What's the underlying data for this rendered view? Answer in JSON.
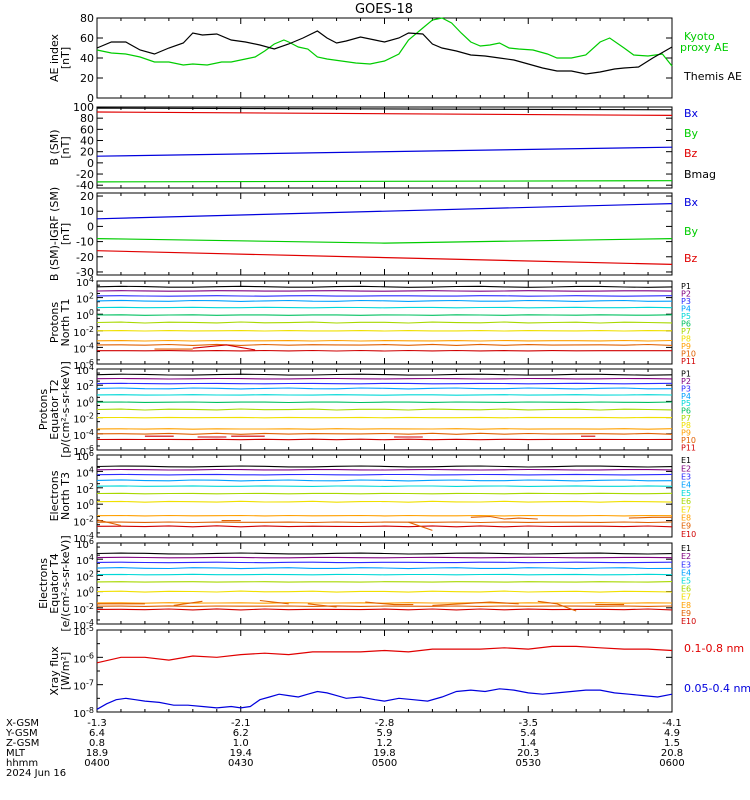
{
  "title": "GOES-18",
  "colors": {
    "black": "#000000",
    "red": "#e00000",
    "green": "#00cc00",
    "blue": "#0000dd",
    "p1": "#000000",
    "p2": "#800080",
    "p3": "#2b2bff",
    "p4": "#00a0ff",
    "p5": "#00d8d8",
    "p6": "#00c060",
    "p7": "#a8d800",
    "p8": "#f0e000",
    "p9": "#ffa000",
    "p10": "#e06000",
    "p11": "#d00000"
  },
  "chart_data": [
    {
      "id": "ae",
      "type": "line",
      "ylabel": "AE index\n[nT]",
      "ylim": [
        0,
        80
      ],
      "ticks": [
        0,
        20,
        40,
        60,
        80
      ],
      "scale": "linear",
      "series": [
        {
          "name": "Kyoto\nproxy AE",
          "color": "green",
          "x": [
            0,
            3,
            6,
            9,
            12,
            15,
            18,
            20,
            23,
            26,
            28,
            31,
            33,
            35,
            37,
            39,
            40,
            42,
            44,
            46,
            48,
            51,
            54,
            57,
            60,
            63,
            65,
            68,
            70,
            72,
            74,
            76,
            78,
            80,
            82,
            84,
            86,
            88,
            91,
            94,
            96,
            99,
            102,
            105,
            107,
            110,
            112,
            115,
            118,
            120
          ],
          "y": [
            48,
            45,
            44,
            41,
            36,
            36,
            33,
            34,
            33,
            36,
            36,
            39,
            41,
            47,
            54,
            58,
            56,
            51,
            49,
            41,
            39,
            37,
            35,
            34,
            37,
            44,
            58,
            70,
            78,
            80,
            75,
            65,
            56,
            52,
            53,
            55,
            50,
            49,
            48,
            44,
            40,
            40,
            43,
            56,
            60,
            50,
            43,
            42,
            44,
            32
          ]
        },
        {
          "name": "Themis AE",
          "color": "black",
          "x": [
            0,
            3,
            6,
            9,
            12,
            15,
            18,
            20,
            22,
            25,
            28,
            31,
            34,
            37,
            40,
            43,
            46,
            48,
            50,
            52,
            55,
            58,
            60,
            63,
            65,
            68,
            70,
            72,
            75,
            78,
            81,
            84,
            87,
            90,
            93,
            96,
            99,
            102,
            105,
            108,
            110,
            113,
            116,
            120
          ],
          "y": [
            50,
            56,
            56,
            48,
            44,
            50,
            55,
            65,
            63,
            64,
            58,
            56,
            53,
            49,
            54,
            60,
            67,
            60,
            55,
            57,
            61,
            58,
            56,
            60,
            65,
            64,
            54,
            50,
            47,
            43,
            42,
            40,
            38,
            34,
            30,
            27,
            27,
            24,
            26,
            29,
            30,
            31,
            40,
            51
          ]
        }
      ]
    },
    {
      "id": "bsm",
      "type": "line",
      "ylabel": "B (SM)\n[nT]",
      "ylim": [
        -45,
        100
      ],
      "ticks": [
        -40,
        -20,
        0,
        20,
        40,
        60,
        80,
        100
      ],
      "scale": "linear",
      "series": [
        {
          "name": "Bx",
          "color": "blue",
          "x": [
            0,
            120
          ],
          "y": [
            12,
            28
          ]
        },
        {
          "name": "By",
          "color": "green",
          "x": [
            0,
            120
          ],
          "y": [
            -34,
            -32
          ]
        },
        {
          "name": "Bz",
          "color": "red",
          "x": [
            0,
            120
          ],
          "y": [
            91,
            85
          ]
        },
        {
          "name": "Bmag",
          "color": "black",
          "x": [
            0,
            120
          ],
          "y": [
            98,
            95
          ]
        }
      ]
    },
    {
      "id": "bigrf",
      "type": "line",
      "ylabel": "B (SM)-IGRF (SM)\n[nT]",
      "ylim": [
        -32,
        22
      ],
      "ticks": [
        -30,
        -20,
        -10,
        0,
        10,
        20
      ],
      "scale": "linear",
      "series": [
        {
          "name": "Bx",
          "color": "blue",
          "x": [
            0,
            120
          ],
          "y": [
            5,
            15
          ]
        },
        {
          "name": "By",
          "color": "green",
          "x": [
            0,
            60,
            120
          ],
          "y": [
            -8,
            -11,
            -8
          ]
        },
        {
          "name": "Bz",
          "color": "red",
          "x": [
            0,
            120
          ],
          "y": [
            -16,
            -25
          ]
        }
      ]
    },
    {
      "id": "protons_t1",
      "type": "line",
      "ylabel": "Protons\nNorth T1",
      "ylim": [
        -6,
        4
      ],
      "scale": "log",
      "tick_labels": [
        {
          "base": "10",
          "exp": "4",
          "v": 4
        },
        {
          "base": "10",
          "exp": "2",
          "v": 2
        },
        {
          "base": "10",
          "exp": "0",
          "v": 0
        },
        {
          "base": "10",
          "exp": "-2",
          "v": -2
        },
        {
          "base": "10",
          "exp": "-4",
          "v": -4
        },
        {
          "base": "10",
          "exp": "-6",
          "v": -6
        }
      ],
      "channels": [
        "P1",
        "P2",
        "P3",
        "P4",
        "P5",
        "P6",
        "P7",
        "P8",
        "P9",
        "P10",
        "P11"
      ],
      "levels": [
        3.3,
        2.8,
        2.2,
        1.6,
        0.8,
        -0.1,
        -1.0,
        -2.0,
        -3.2,
        -3.7,
        -4.4
      ],
      "fragments": [
        {
          "channel": 9,
          "x": [
            12,
            20
          ],
          "y": [
            -4.2,
            -4.2
          ]
        },
        {
          "channel": 10,
          "x": [
            20,
            27,
            33
          ],
          "y": [
            -4.1,
            -3.7,
            -4.3
          ]
        }
      ]
    },
    {
      "id": "protons_t2",
      "type": "line",
      "ylabel": "Protons\nEquator T2\n[p/(cm²-s-sr-keV)]",
      "ylim": [
        -6,
        4
      ],
      "scale": "log",
      "tick_labels": [
        {
          "base": "10",
          "exp": "4",
          "v": 4
        },
        {
          "base": "10",
          "exp": "2",
          "v": 2
        },
        {
          "base": "10",
          "exp": "0",
          "v": 0
        },
        {
          "base": "10",
          "exp": "-2",
          "v": -2
        },
        {
          "base": "10",
          "exp": "-4",
          "v": -4
        },
        {
          "base": "10",
          "exp": "-6",
          "v": -6
        }
      ],
      "channels": [
        "P1",
        "P2",
        "P3",
        "P4",
        "P5",
        "P6",
        "P7",
        "P8",
        "P9",
        "P10",
        "P11"
      ],
      "levels": [
        3.3,
        2.8,
        2.2,
        1.6,
        0.8,
        -0.1,
        -1.0,
        -2.0,
        -3.4,
        -4.0,
        -4.7
      ],
      "fragments": [
        {
          "channel": 10,
          "x": [
            10,
            16
          ],
          "y": [
            -4.3,
            -4.3
          ]
        },
        {
          "channel": 10,
          "x": [
            21,
            27
          ],
          "y": [
            -4.4,
            -4.4
          ]
        },
        {
          "channel": 10,
          "x": [
            28,
            35
          ],
          "y": [
            -4.3,
            -4.3
          ]
        },
        {
          "channel": 10,
          "x": [
            62,
            68
          ],
          "y": [
            -4.4,
            -4.4
          ]
        },
        {
          "channel": 10,
          "x": [
            101,
            104
          ],
          "y": [
            -4.3,
            -4.3
          ]
        }
      ]
    },
    {
      "id": "electrons_t3",
      "type": "line",
      "ylabel": "Electrons\nNorth T3",
      "ylim": [
        -4,
        6
      ],
      "scale": "log",
      "tick_labels": [
        {
          "base": "10",
          "exp": "6",
          "v": 6
        },
        {
          "base": "10",
          "exp": "4",
          "v": 4
        },
        {
          "base": "10",
          "exp": "2",
          "v": 2
        },
        {
          "base": "10",
          "exp": "0",
          "v": 0
        },
        {
          "base": "10",
          "exp": "-2",
          "v": -2
        },
        {
          "base": "10",
          "exp": "-4",
          "v": -4
        }
      ],
      "channels": [
        "E1",
        "E2",
        "E3",
        "E4",
        "E5",
        "E6",
        "E7",
        "E8",
        "E9",
        "E10"
      ],
      "levels": [
        4.6,
        4.2,
        3.6,
        2.9,
        2.2,
        1.3,
        0.3,
        -1.4,
        -2.2,
        -2.7
      ],
      "fragments": [
        {
          "channel": 8,
          "x": [
            0,
            5
          ],
          "y": [
            -1.9,
            -2.6
          ]
        },
        {
          "channel": 8,
          "x": [
            26,
            30
          ],
          "y": [
            -2.0,
            -2.0
          ]
        },
        {
          "channel": 8,
          "x": [
            65,
            70
          ],
          "y": [
            -2.2,
            -3.2
          ]
        },
        {
          "channel": 8,
          "x": [
            78,
            82,
            85,
            88,
            92
          ],
          "y": [
            -1.6,
            -1.5,
            -1.8,
            -1.7,
            -1.8
          ]
        },
        {
          "channel": 8,
          "x": [
            111,
            116,
            120
          ],
          "y": [
            -1.7,
            -1.6,
            -1.6
          ]
        }
      ]
    },
    {
      "id": "electrons_t4",
      "type": "line",
      "ylabel": "Electrons\nEquator T4\n[e/(cm²-s-sr-keV)]",
      "ylim": [
        -4,
        6
      ],
      "scale": "log",
      "tick_labels": [
        {
          "base": "10",
          "exp": "6",
          "v": 6
        },
        {
          "base": "10",
          "exp": "4",
          "v": 4
        },
        {
          "base": "10",
          "exp": "2",
          "v": 2
        },
        {
          "base": "10",
          "exp": "0",
          "v": 0
        },
        {
          "base": "10",
          "exp": "-2",
          "v": -2
        },
        {
          "base": "10",
          "exp": "-4",
          "v": -4
        }
      ],
      "channels": [
        "E1",
        "E2",
        "E3",
        "E4",
        "E5",
        "E6",
        "E7",
        "E8",
        "E9",
        "E10"
      ],
      "levels": [
        4.7,
        4.2,
        3.6,
        2.9,
        2.1,
        1.2,
        0.0,
        -1.4,
        -1.8,
        -2.2
      ],
      "fragments": [
        {
          "channel": 8,
          "x": [
            0,
            10
          ],
          "y": [
            -1.5,
            -1.5
          ]
        },
        {
          "channel": 8,
          "x": [
            16,
            22
          ],
          "y": [
            -1.7,
            -1.2
          ]
        },
        {
          "channel": 8,
          "x": [
            34,
            40
          ],
          "y": [
            -1.1,
            -1.5
          ]
        },
        {
          "channel": 8,
          "x": [
            44,
            50
          ],
          "y": [
            -1.5,
            -1.9
          ]
        },
        {
          "channel": 8,
          "x": [
            56,
            62,
            66
          ],
          "y": [
            -1.3,
            -1.6,
            -1.6
          ]
        },
        {
          "channel": 8,
          "x": [
            70,
            76,
            82,
            88
          ],
          "y": [
            -1.7,
            -1.5,
            -1.3,
            -1.5
          ]
        },
        {
          "channel": 8,
          "x": [
            92,
            96,
            100
          ],
          "y": [
            -1.2,
            -1.5,
            -2.4
          ]
        },
        {
          "channel": 8,
          "x": [
            104,
            110
          ],
          "y": [
            -1.6,
            -1.6
          ]
        }
      ]
    },
    {
      "id": "xray",
      "type": "line",
      "ylabel": "Xray flux\n[W/m²]",
      "ylim": [
        -8,
        -5
      ],
      "scale": "log",
      "tick_labels": [
        {
          "base": "10",
          "exp": "-5",
          "v": -5
        },
        {
          "base": "10",
          "exp": "-6",
          "v": -6
        },
        {
          "base": "10",
          "exp": "-7",
          "v": -7
        },
        {
          "base": "10",
          "exp": "-8",
          "v": -8
        }
      ],
      "series": [
        {
          "name": "0.1-0.8 nm",
          "color": "red",
          "x": [
            0,
            5,
            10,
            15,
            20,
            25,
            30,
            35,
            40,
            45,
            50,
            55,
            60,
            65,
            70,
            75,
            80,
            85,
            90,
            95,
            100,
            105,
            110,
            115,
            120
          ],
          "y": [
            -6.2,
            -6.0,
            -6.0,
            -6.1,
            -5.95,
            -6.0,
            -5.9,
            -5.85,
            -5.9,
            -5.8,
            -5.8,
            -5.8,
            -5.75,
            -5.8,
            -5.7,
            -5.7,
            -5.7,
            -5.65,
            -5.7,
            -5.6,
            -5.6,
            -5.65,
            -5.7,
            -5.7,
            -5.75
          ]
        },
        {
          "name": "0.05-0.4 nm",
          "color": "blue",
          "x": [
            0,
            2,
            4,
            6,
            8,
            10,
            13,
            16,
            19,
            22,
            25,
            28,
            30,
            32,
            34,
            36,
            38,
            40,
            42,
            44,
            46,
            48,
            50,
            52,
            55,
            58,
            60,
            63,
            66,
            69,
            72,
            75,
            78,
            81,
            84,
            87,
            90,
            93,
            96,
            99,
            102,
            105,
            108,
            111,
            114,
            117,
            120
          ],
          "y": [
            -7.9,
            -7.7,
            -7.55,
            -7.5,
            -7.55,
            -7.6,
            -7.65,
            -7.75,
            -7.75,
            -7.8,
            -7.85,
            -7.8,
            -7.85,
            -7.8,
            -7.55,
            -7.45,
            -7.35,
            -7.4,
            -7.45,
            -7.35,
            -7.25,
            -7.3,
            -7.4,
            -7.5,
            -7.45,
            -7.55,
            -7.6,
            -7.5,
            -7.55,
            -7.6,
            -7.45,
            -7.25,
            -7.2,
            -7.25,
            -7.15,
            -7.2,
            -7.3,
            -7.35,
            -7.3,
            -7.25,
            -7.2,
            -7.2,
            -7.3,
            -7.35,
            -7.4,
            -7.45,
            -7.35
          ]
        }
      ]
    }
  ],
  "ephemeris": {
    "row_labels": [
      "X-GSM",
      "Y-GSM",
      "Z-GSM",
      "MLT",
      "hhmm",
      "2024 Jun 16"
    ],
    "columns": [
      {
        "x": 0,
        "values": [
          "-1.3",
          "6.4",
          "0.8",
          "18.9",
          "0400"
        ]
      },
      {
        "x": 30,
        "values": [
          "-2.1",
          "6.2",
          "1.0",
          "19.4",
          "0430"
        ]
      },
      {
        "x": 60,
        "values": [
          "-2.8",
          "5.9",
          "1.2",
          "19.8",
          "0500"
        ]
      },
      {
        "x": 90,
        "values": [
          "-3.5",
          "5.4",
          "1.4",
          "20.3",
          "0530"
        ]
      },
      {
        "x": 120,
        "values": [
          "-4.1",
          "4.9",
          "1.5",
          "20.8",
          "0600"
        ]
      }
    ]
  }
}
